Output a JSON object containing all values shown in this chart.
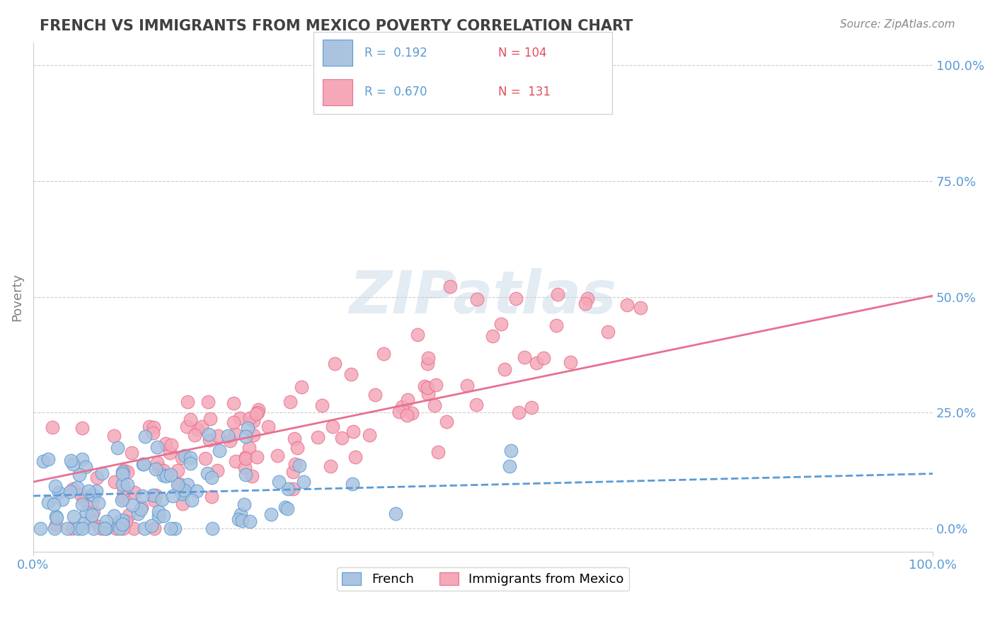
{
  "title": "FRENCH VS IMMIGRANTS FROM MEXICO POVERTY CORRELATION CHART",
  "source_text": "Source: ZipAtlas.com",
  "xlabel": "",
  "ylabel": "Poverty",
  "xlim": [
    0,
    1
  ],
  "ylim": [
    -0.05,
    1.05
  ],
  "ytick_labels": [
    "0.0%",
    "25.0%",
    "50.0%",
    "75.0%",
    "100.0%"
  ],
  "ytick_values": [
    0.0,
    0.25,
    0.5,
    0.75,
    1.0
  ],
  "xtick_labels": [
    "0.0%",
    "100.0%"
  ],
  "xtick_values": [
    0.0,
    1.0
  ],
  "legend_r1": "R =  0.192",
  "legend_n1": "N = 104",
  "legend_r2": "R =  0.670",
  "legend_n2": " 131",
  "french_color": "#aac4e0",
  "mexico_color": "#f4a8b8",
  "french_line_color": "#5b9bd5",
  "mexico_line_color": "#e87090",
  "background_color": "#ffffff",
  "grid_color": "#cccccc",
  "title_color": "#404040",
  "axis_label_color": "#808080",
  "tick_label_color": "#5b9bd5",
  "watermark_color": "#c8d8e8",
  "french_R": 0.192,
  "mexico_R": 0.67,
  "french_N": 104,
  "mexico_N": 131,
  "french_seed": 42,
  "mexico_seed": 99
}
